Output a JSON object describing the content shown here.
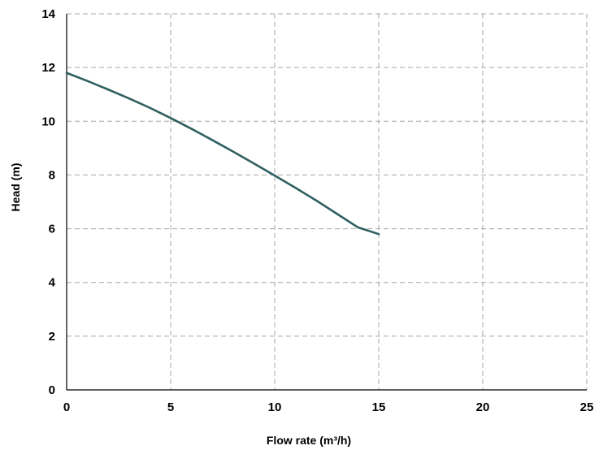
{
  "chart_data": {
    "type": "line",
    "title": "",
    "xlabel": "Flow rate (m³/h)",
    "ylabel": "Head (m)",
    "xlim": [
      0,
      25
    ],
    "ylim": [
      0,
      14
    ],
    "xticks": [
      0,
      5,
      10,
      15,
      20,
      25
    ],
    "yticks": [
      0,
      2,
      4,
      6,
      8,
      10,
      12,
      14
    ],
    "grid": true,
    "legend": "none",
    "series": [
      {
        "color": "#2f5f5f",
        "x": [
          0,
          1,
          2,
          3,
          4,
          5,
          6,
          7,
          8,
          9,
          10,
          11,
          12,
          13,
          14,
          15
        ],
        "y": [
          11.8,
          11.5,
          11.18,
          10.85,
          10.5,
          10.12,
          9.72,
          9.3,
          8.87,
          8.43,
          7.98,
          7.52,
          7.05,
          6.55,
          6.05,
          5.8
        ]
      }
    ]
  }
}
